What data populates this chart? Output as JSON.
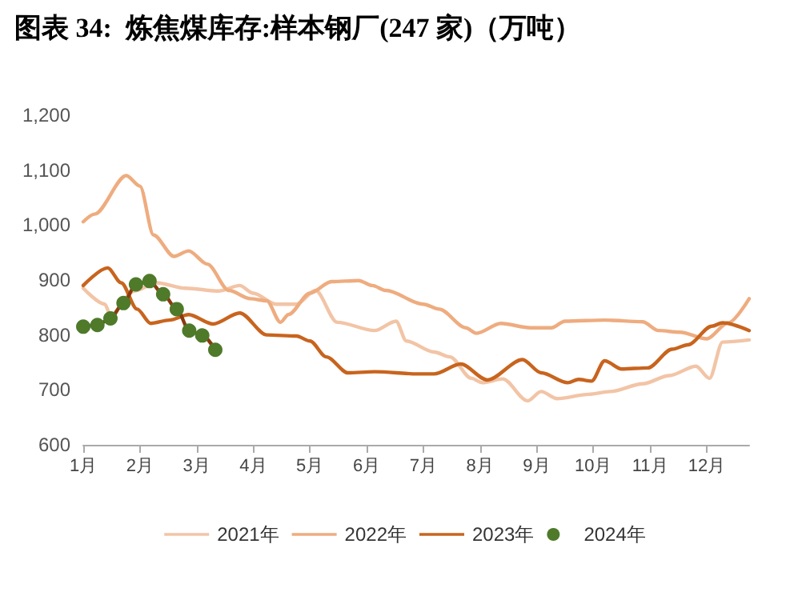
{
  "chart_data": {
    "type": "line",
    "title": "图表 34:  炼焦煤库存:样本钢厂(247 家)（万吨）",
    "xlim": [
      1,
      12.75
    ],
    "xticks": [
      {
        "value": 1,
        "label": "1月"
      },
      {
        "value": 2,
        "label": "2月"
      },
      {
        "value": 3,
        "label": "3月"
      },
      {
        "value": 4,
        "label": "4月"
      },
      {
        "value": 5,
        "label": "5月"
      },
      {
        "value": 6,
        "label": "6月"
      },
      {
        "value": 7,
        "label": "7月"
      },
      {
        "value": 8,
        "label": "8月"
      },
      {
        "value": 9,
        "label": "9月"
      },
      {
        "value": 10,
        "label": "10月"
      },
      {
        "value": 11,
        "label": "11月"
      },
      {
        "value": 12,
        "label": "12月"
      }
    ],
    "ylim": [
      600,
      1200
    ],
    "yticks": [
      600,
      700,
      800,
      900,
      {
        "value": 1000,
        "label": "1,000"
      },
      {
        "value": 1100,
        "label": "1,100"
      },
      {
        "value": 1200,
        "label": "1,200"
      }
    ],
    "grid": false,
    "legend": "bottom",
    "marker": "none",
    "line_style": "solid",
    "series": [
      {
        "name": "2021年",
        "color": "#f2c4a6",
        "x": [
          1,
          1.38,
          1.48,
          1.9,
          2.3,
          2.8,
          3.4,
          3.76,
          4,
          4.4,
          4.76,
          5.1,
          5.48,
          6.14,
          6.52,
          6.7,
          7.19,
          7.47,
          7.85,
          8.04,
          8.4,
          8.84,
          9.08,
          9.36,
          9.92,
          10.3,
          10.87,
          11.34,
          11.81,
          12.05,
          12.28,
          12.75
        ],
        "values": [
          885,
          856,
          836,
          880,
          895,
          885,
          880,
          890,
          876,
          856,
          856,
          881,
          823,
          808,
          825,
          789,
          769,
          760,
          721,
          713,
          720,
          680,
          697,
          684,
          692,
          697,
          711,
          726,
          743,
          721,
          787,
          791
        ]
      },
      {
        "name": "2022年",
        "color": "#eeac7f",
        "x": [
          1,
          1.2,
          1.76,
          2,
          2.24,
          2.6,
          2.86,
          3.19,
          3.57,
          3.95,
          4.24,
          4.48,
          4.62,
          5,
          5.38,
          5.86,
          6.1,
          6.34,
          7,
          7.28,
          7.75,
          7.94,
          8.37,
          8.89,
          9.26,
          9.5,
          10.2,
          10.87,
          11.15,
          11.53,
          12,
          12.38,
          12.75
        ],
        "values": [
          1006,
          1020,
          1090,
          1071,
          982,
          943,
          953,
          929,
          881,
          866,
          862,
          823,
          837,
          876,
          897,
          899,
          890,
          881,
          856,
          847,
          813,
          803,
          821,
          813,
          813,
          825,
          827,
          824,
          808,
          805,
          793,
          822,
          866
        ]
      },
      {
        "name": "2023年",
        "color": "#c8641e",
        "x": [
          1,
          1.43,
          1.67,
          1.95,
          2.19,
          2.52,
          2.86,
          3.29,
          3.76,
          4.24,
          4.76,
          5,
          5.29,
          5.67,
          6.14,
          6.9,
          7.19,
          7.66,
          8.13,
          8.75,
          9.08,
          9.55,
          9.74,
          9.97,
          10.2,
          10.5,
          10.96,
          11.39,
          11.67,
          12.09,
          12.28,
          12.75
        ],
        "values": [
          890,
          922,
          895,
          847,
          821,
          827,
          837,
          820,
          840,
          800,
          798,
          789,
          760,
          731,
          733,
          729,
          729,
          747,
          718,
          755,
          731,
          713,
          719,
          716,
          753,
          738,
          740,
          774,
          782,
          816,
          822,
          808
        ]
      },
      {
        "name": "2024年",
        "color": "#8b3a10",
        "marker": "circle",
        "colors": [
          "#4e7a2a",
          "#4e7a2a",
          "#4e7a2a",
          "#4e7a2a",
          "#4e7a2a",
          "#4e7a2a",
          "#4e7a2a",
          "#4e7a2a",
          "#4e7a2a",
          "#4e7a2a",
          "#4e7a2a"
        ],
        "x": [
          1,
          1.25,
          1.48,
          1.71,
          1.93,
          2.17,
          2.41,
          2.65,
          2.87,
          3.1,
          3.33
        ],
        "values": [
          815,
          818,
          830,
          858,
          892,
          898,
          874,
          847,
          808,
          799,
          773
        ]
      }
    ]
  }
}
